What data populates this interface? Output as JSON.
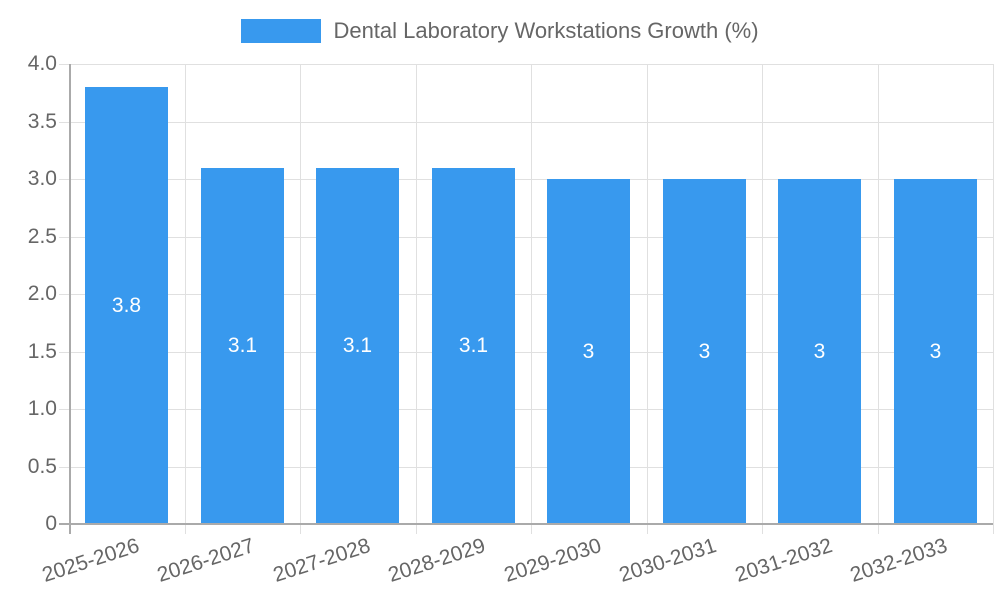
{
  "legend": {
    "label": "Dental Laboratory Workstations Growth (%)",
    "color": "#3899ee"
  },
  "y_ticks": [
    "4.0",
    "3.5",
    "3.0",
    "2.5",
    "2.0",
    "1.5",
    "1.0",
    "0.5",
    "0"
  ],
  "bars": [
    {
      "category": "2025-2026",
      "label": "3.8"
    },
    {
      "category": "2026-2027",
      "label": "3.1"
    },
    {
      "category": "2027-2028",
      "label": "3.1"
    },
    {
      "category": "2028-2029",
      "label": "3.1"
    },
    {
      "category": "2029-2030",
      "label": "3"
    },
    {
      "category": "2030-2031",
      "label": "3"
    },
    {
      "category": "2031-2032",
      "label": "3"
    },
    {
      "category": "2032-2033",
      "label": "3"
    }
  ],
  "chart_data": {
    "type": "bar",
    "title": "",
    "categories": [
      "2025-2026",
      "2026-2027",
      "2027-2028",
      "2028-2029",
      "2029-2030",
      "2030-2031",
      "2031-2032",
      "2032-2033"
    ],
    "series": [
      {
        "name": "Dental Laboratory Workstations Growth (%)",
        "values": [
          3.8,
          3.1,
          3.1,
          3.1,
          3.0,
          3.0,
          3.0,
          3.0
        ],
        "color": "#3899ee"
      }
    ],
    "xlabel": "",
    "ylabel": "",
    "ylim": [
      0,
      4.0
    ],
    "yticks": [
      0,
      0.5,
      1.0,
      1.5,
      2.0,
      2.5,
      3.0,
      3.5,
      4.0
    ],
    "grid": true,
    "legend_position": "top",
    "data_labels": true
  }
}
